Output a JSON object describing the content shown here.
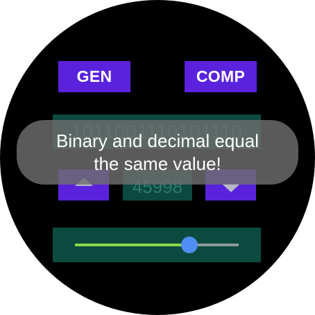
{
  "buttons": {
    "gen_label": "GEN",
    "comp_label": "COMP"
  },
  "binary": {
    "value": "1011001110101110"
  },
  "decimal": {
    "value": "45998"
  },
  "stepper": {
    "up_icon": "triangle-up-icon",
    "down_icon": "triangle-down-icon"
  },
  "slider": {
    "value_fraction": 0.7
  },
  "toast": {
    "line1": "Binary and decimal equal",
    "line2": "the same value!"
  },
  "colors": {
    "button": "#5a22dd",
    "field_bg": "#0c4a3f",
    "field_text": "#2e7a6c",
    "slider_fill": "#8dd94a",
    "slider_thumb": "#4f8ef2",
    "background": "#000000"
  }
}
